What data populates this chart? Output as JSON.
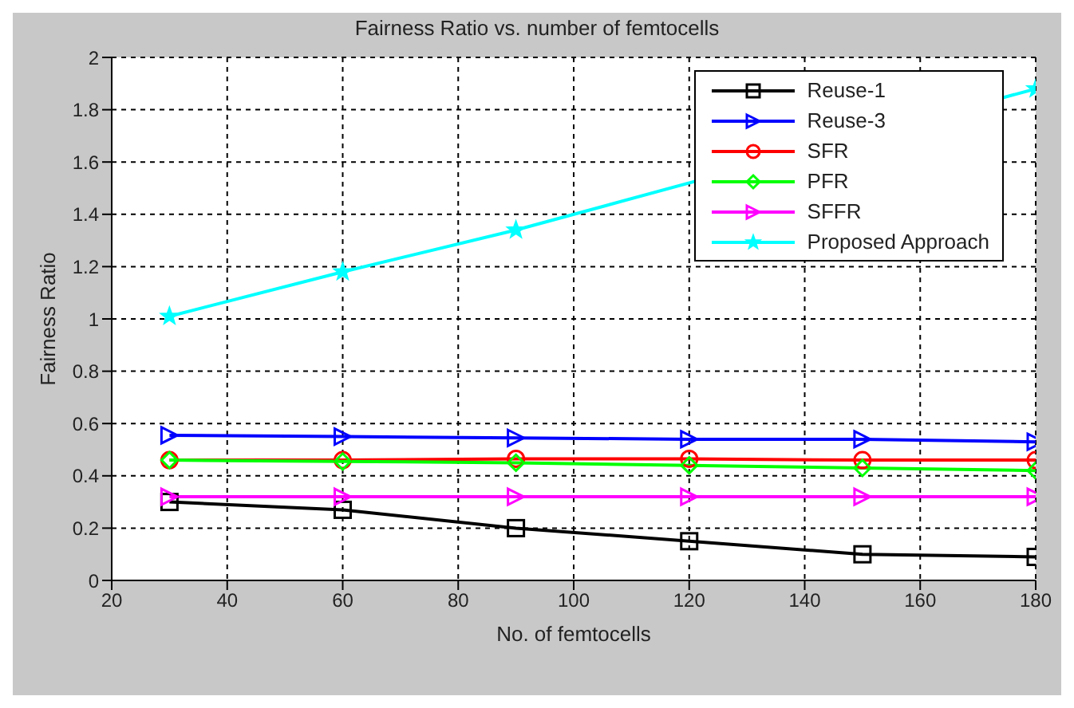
{
  "chart_data": {
    "type": "line",
    "title": "Fairness Ratio vs. number of femtocells",
    "xlabel": "No. of femtocells",
    "ylabel": "Fairness Ratio",
    "x": [
      30,
      60,
      90,
      120,
      150,
      180
    ],
    "series": [
      {
        "name": "Reuse-1",
        "color": "#000000",
        "marker": "square",
        "values": [
          0.3,
          0.27,
          0.2,
          0.15,
          0.1,
          0.09
        ]
      },
      {
        "name": "Reuse-3",
        "color": "#0000ff",
        "marker": "triangle",
        "values": [
          0.555,
          0.55,
          0.545,
          0.54,
          0.54,
          0.53
        ]
      },
      {
        "name": "SFR",
        "color": "#ff0000",
        "marker": "circle",
        "values": [
          0.46,
          0.46,
          0.465,
          0.465,
          0.46,
          0.46
        ]
      },
      {
        "name": "PFR",
        "color": "#00ff00",
        "marker": "diamond",
        "values": [
          0.46,
          0.455,
          0.45,
          0.44,
          0.43,
          0.42
        ]
      },
      {
        "name": "SFFR",
        "color": "#ff00ff",
        "marker": "triangle",
        "values": [
          0.32,
          0.32,
          0.32,
          0.32,
          0.32,
          0.32
        ]
      },
      {
        "name": "Proposed Approach",
        "color": "#00ffff",
        "marker": "star",
        "values": [
          1.01,
          1.18,
          1.34,
          null,
          null,
          1.88
        ]
      }
    ],
    "xlim": [
      20,
      180
    ],
    "xticks": [
      20,
      40,
      60,
      80,
      100,
      120,
      140,
      160,
      180
    ],
    "ylim": [
      0,
      2
    ],
    "yticks": [
      0,
      0.2,
      0.4,
      0.6,
      0.8,
      1,
      1.2,
      1.4,
      1.6,
      1.8,
      2
    ],
    "grid": true,
    "legend": "top right",
    "line_style": "solid"
  }
}
